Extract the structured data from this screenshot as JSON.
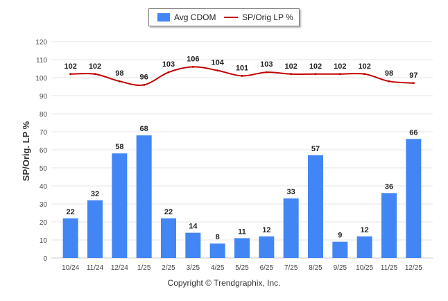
{
  "chart_data": {
    "type": "bar",
    "categories": [
      "10/24",
      "11/24",
      "12/24",
      "1/25",
      "2/25",
      "3/25",
      "4/25",
      "5/25",
      "6/25",
      "7/25",
      "8/25",
      "9/25",
      "10/25",
      "11/25",
      "12/25"
    ],
    "series": [
      {
        "name": "Avg CDOM",
        "type": "bar",
        "values": [
          22,
          32,
          58,
          68,
          22,
          14,
          8,
          11,
          12,
          33,
          57,
          9,
          12,
          36,
          66
        ],
        "color": "#4285f4"
      },
      {
        "name": "SP/Orig LP %",
        "type": "line",
        "values": [
          102,
          102,
          98,
          96,
          103,
          106,
          104,
          101,
          103,
          102,
          102,
          102,
          102,
          98,
          97
        ],
        "color": "#c00000"
      }
    ],
    "ylabel": "SP/Orig. LP %",
    "yticks": [
      0,
      10,
      20,
      30,
      40,
      50,
      60,
      70,
      80,
      90,
      100,
      110,
      120
    ],
    "ylim": [
      0,
      120
    ],
    "grid": true,
    "legend": "top-center"
  },
  "legend": {
    "bar_label": "Avg CDOM",
    "line_label": "SP/Orig LP %"
  },
  "footer": "Copyright © Trendgraphix, Inc."
}
